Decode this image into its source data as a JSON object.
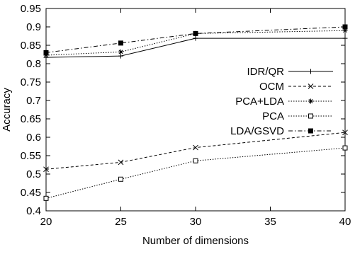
{
  "chart_data": {
    "type": "line",
    "xlabel": "Number of dimensions",
    "ylabel": "Accuracy",
    "xlim": [
      20,
      40
    ],
    "ylim": [
      0.4,
      0.95
    ],
    "xticks": [
      20,
      25,
      30,
      35,
      40
    ],
    "xtick_labels": [
      "20",
      "25",
      "30",
      "35",
      "40"
    ],
    "yticks": [
      0.4,
      0.45,
      0.5,
      0.55,
      0.6,
      0.65,
      0.7,
      0.75,
      0.8,
      0.85,
      0.9,
      0.95
    ],
    "ytick_labels": [
      "0.4",
      "0.45",
      "0.5",
      "0.55",
      "0.6",
      "0.65",
      "0.7",
      "0.75",
      "0.8",
      "0.85",
      "0.9",
      "0.95"
    ],
    "grid": false,
    "legend_position": "right",
    "x": [
      20,
      25,
      30,
      40
    ],
    "series": [
      {
        "name": "IDR/QR",
        "values": [
          0.817,
          0.821,
          0.869,
          0.869
        ],
        "marker": "plus",
        "dash": "solid"
      },
      {
        "name": "OCM",
        "values": [
          0.513,
          0.532,
          0.572,
          0.613
        ],
        "marker": "cross",
        "dash": "dashed"
      },
      {
        "name": "PCA+LDA",
        "values": [
          0.823,
          0.832,
          0.882,
          0.89
        ],
        "marker": "asterisk",
        "dash": "dotted"
      },
      {
        "name": "PCA",
        "values": [
          0.434,
          0.486,
          0.536,
          0.571
        ],
        "marker": "open-square",
        "dash": "dotted"
      },
      {
        "name": "LDA/GSVD",
        "values": [
          0.83,
          0.856,
          0.882,
          0.9
        ],
        "marker": "filled-square",
        "dash": "dashdot"
      }
    ]
  }
}
